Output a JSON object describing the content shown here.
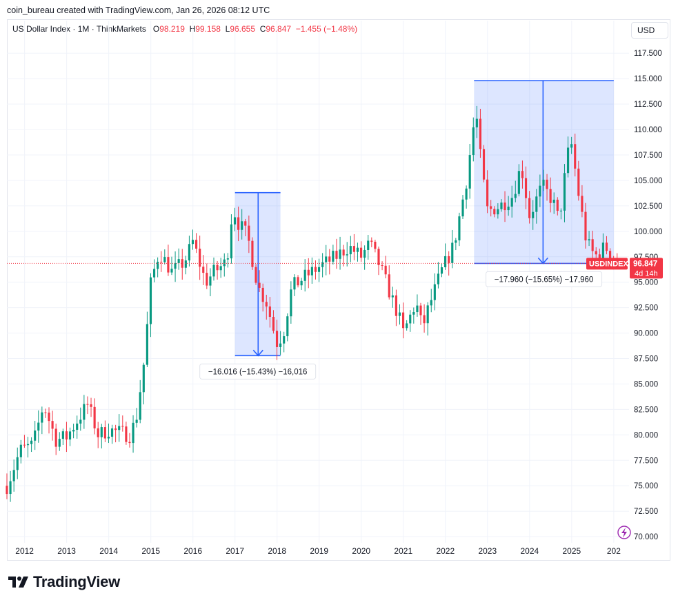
{
  "header": {
    "attribution": "coin_bureau created with TradingView.com, Jan 26, 2026 08:12 UTC"
  },
  "legend": {
    "symbol": "US Dollar Index · 1M · ThinkMarkets",
    "open_label": "O",
    "open": "98.219",
    "high_label": "H",
    "high": "99.158",
    "low_label": "L",
    "low": "96.655",
    "close_label": "C",
    "close": "96.847",
    "change": "−1.455 (−1.48%)"
  },
  "currency": "USD",
  "price_tag": {
    "symbol": "USDINDEX",
    "price": "96.847",
    "countdown": "4d 14h"
  },
  "measurements": [
    {
      "label": "−16.016 (−15.43%) −16,016"
    },
    {
      "label": "−17.960 (−15.65%) −17,960"
    }
  ],
  "footer": {
    "brand": "TradingView"
  },
  "colors": {
    "up": "#089981",
    "down": "#f23645",
    "measure": "#2962ff",
    "measure_fill": "#2962ff"
  },
  "chart_data": {
    "type": "candlestick",
    "interval": "1M",
    "yaxis": {
      "ticks": [
        "70.000",
        "72.500",
        "75.000",
        "77.500",
        "80.000",
        "82.500",
        "85.000",
        "87.500",
        "90.000",
        "92.500",
        "95.000",
        "97.500",
        "100.000",
        "102.500",
        "105.000",
        "107.500",
        "110.000",
        "112.500",
        "115.000",
        "117.500"
      ],
      "range": [
        69.4,
        118.8
      ]
    },
    "xaxis": {
      "ticks": [
        "2012",
        "2013",
        "2014",
        "2015",
        "2016",
        "2017",
        "2018",
        "2019",
        "2020",
        "2021",
        "2022",
        "2023",
        "2024",
        "2025",
        "202"
      ],
      "range": [
        2011.58,
        2026.33
      ]
    },
    "last_price": 96.847,
    "anchors": [
      [
        2011.58,
        75.0
      ],
      [
        2011.9,
        78.5
      ],
      [
        2012.2,
        79.0
      ],
      [
        2012.45,
        83.0
      ],
      [
        2012.75,
        79.5
      ],
      [
        2013.0,
        79.8
      ],
      [
        2013.5,
        83.0
      ],
      [
        2013.75,
        80.0
      ],
      [
        2014.0,
        80.5
      ],
      [
        2014.5,
        80.0
      ],
      [
        2014.65,
        81.5
      ],
      [
        2014.85,
        87.5
      ],
      [
        2015.0,
        95.0
      ],
      [
        2015.2,
        98.0
      ],
      [
        2015.5,
        96.0
      ],
      [
        2015.8,
        97.0
      ],
      [
        2016.0,
        99.0
      ],
      [
        2016.3,
        95.0
      ],
      [
        2016.5,
        96.0
      ],
      [
        2016.8,
        97.0
      ],
      [
        2016.95,
        102.5
      ],
      [
        2017.05,
        101.0
      ],
      [
        2017.3,
        99.5
      ],
      [
        2017.55,
        94.5
      ],
      [
        2017.75,
        93.0
      ],
      [
        2018.0,
        89.0
      ],
      [
        2018.15,
        90.0
      ],
      [
        2018.35,
        94.5
      ],
      [
        2018.65,
        95.5
      ],
      [
        2019.0,
        96.5
      ],
      [
        2019.4,
        97.5
      ],
      [
        2019.7,
        98.5
      ],
      [
        2020.0,
        97.5
      ],
      [
        2020.2,
        98.8
      ],
      [
        2020.45,
        96.5
      ],
      [
        2020.9,
        91.5
      ],
      [
        2021.0,
        90.0
      ],
      [
        2021.3,
        93.0
      ],
      [
        2021.45,
        90.5
      ],
      [
        2021.6,
        92.5
      ],
      [
        2021.9,
        96.0
      ],
      [
        2022.2,
        98.6
      ],
      [
        2022.5,
        105.0
      ],
      [
        2022.72,
        112.0
      ],
      [
        2022.85,
        106.5
      ],
      [
        2023.0,
        102.0
      ],
      [
        2023.3,
        102.5
      ],
      [
        2023.6,
        103.5
      ],
      [
        2023.8,
        106.5
      ],
      [
        2024.0,
        101.5
      ],
      [
        2024.3,
        104.5
      ],
      [
        2024.55,
        103.0
      ],
      [
        2024.7,
        101.0
      ],
      [
        2024.9,
        107.5
      ],
      [
        2025.0,
        108.5
      ],
      [
        2025.15,
        104.0
      ],
      [
        2025.35,
        99.0
      ],
      [
        2025.55,
        97.5
      ],
      [
        2025.8,
        98.5
      ],
      [
        2026.08,
        96.85
      ]
    ],
    "measures": [
      {
        "x1": 2017.0,
        "x2": 2018.08,
        "top": 103.8,
        "bottom": 87.784,
        "arrow_x": 2017.55
      },
      {
        "x1": 2022.68,
        "x2": 2026.0,
        "top": 114.807,
        "bottom": 96.847,
        "arrow_x": 2024.32
      }
    ]
  }
}
